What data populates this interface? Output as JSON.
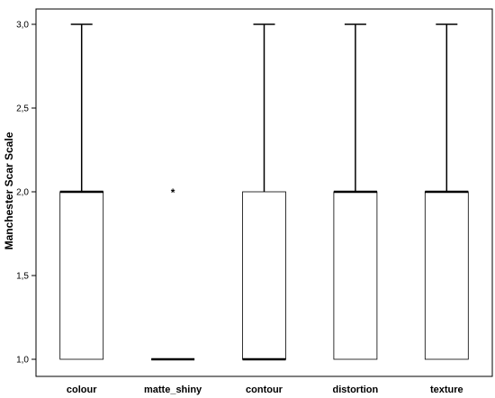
{
  "chart_data": {
    "type": "boxplot",
    "title": "",
    "xlabel": "",
    "ylabel": "Manchester Scar Scale",
    "ylim": [
      0.9,
      3.05
    ],
    "yticks": [
      1.0,
      1.5,
      2.0,
      2.5,
      3.0
    ],
    "ytick_labels": [
      "1,0",
      "1,5",
      "2,0",
      "2,5",
      "3,0"
    ],
    "grid": false,
    "categories": [
      "colour",
      "matte_shiny",
      "contour",
      "distortion",
      "texture"
    ],
    "boxes": [
      {
        "category": "colour",
        "min": 1.0,
        "q1": 1.0,
        "median": 2.0,
        "q3": 2.0,
        "max": 3.0,
        "outliers": []
      },
      {
        "category": "matte_shiny",
        "min": 1.0,
        "q1": 1.0,
        "median": 1.0,
        "q3": 1.0,
        "max": 1.0,
        "outliers": [
          2.0
        ]
      },
      {
        "category": "contour",
        "min": 1.0,
        "q1": 1.0,
        "median": 1.0,
        "q3": 2.0,
        "max": 3.0,
        "outliers": []
      },
      {
        "category": "distortion",
        "min": 1.0,
        "q1": 1.0,
        "median": 2.0,
        "q3": 2.0,
        "max": 3.0,
        "outliers": []
      },
      {
        "category": "texture",
        "min": 1.0,
        "q1": 1.0,
        "median": 2.0,
        "q3": 2.0,
        "max": 3.0,
        "outliers": []
      }
    ],
    "colors": {
      "box_fill": "#ffffff",
      "box_stroke": "#000000",
      "frame": "#000000"
    },
    "outlier_marker": "*"
  }
}
